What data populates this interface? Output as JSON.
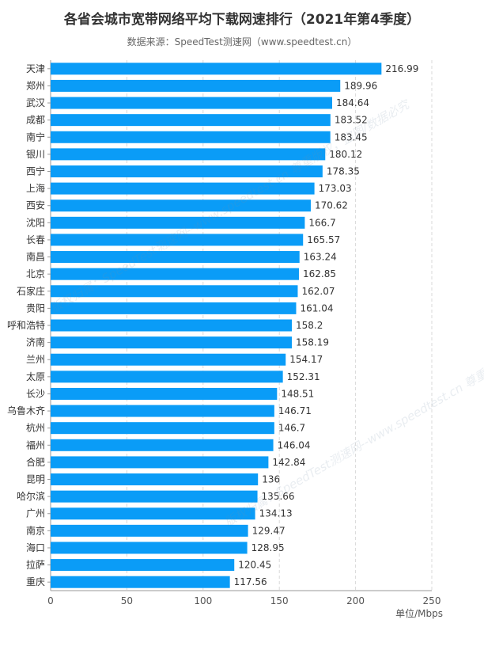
{
  "title": "各省会城市宽带网络平均下载网速排行（2021年第4季度）",
  "subtitle": "数据来源：SpeedTest测速网（www.speedtest.cn）",
  "watermark": "版权归属：SpeedTest测速网--www.speedtest.cn 尊重版权，盗图/数据必究",
  "colors": {
    "bar": "#0a9cf7",
    "grid": "#d9d9d9",
    "axis": "#999999"
  },
  "chart_data": {
    "type": "bar",
    "orientation": "horizontal",
    "categories": [
      "天津",
      "郑州",
      "武汉",
      "成都",
      "南宁",
      "银川",
      "西宁",
      "上海",
      "西安",
      "沈阳",
      "长春",
      "南昌",
      "北京",
      "石家庄",
      "贵阳",
      "呼和浩特",
      "济南",
      "兰州",
      "太原",
      "长沙",
      "乌鲁木齐",
      "杭州",
      "福州",
      "合肥",
      "昆明",
      "哈尔滨",
      "广州",
      "南京",
      "海口",
      "拉萨",
      "重庆"
    ],
    "values": [
      216.99,
      189.96,
      184.64,
      183.52,
      183.45,
      180.12,
      178.35,
      173.03,
      170.62,
      166.7,
      165.57,
      163.24,
      162.85,
      162.07,
      161.04,
      158.2,
      158.19,
      154.17,
      152.31,
      148.51,
      146.71,
      146.7,
      146.04,
      142.84,
      136,
      135.66,
      134.13,
      129.47,
      128.95,
      120.45,
      117.56
    ],
    "value_labels": [
      "216.99",
      "189.96",
      "184.64",
      "183.52",
      "183.45",
      "180.12",
      "178.35",
      "173.03",
      "170.62",
      "166.7",
      "165.57",
      "163.24",
      "162.85",
      "162.07",
      "161.04",
      "158.2",
      "158.19",
      "154.17",
      "152.31",
      "148.51",
      "146.71",
      "146.7",
      "146.04",
      "142.84",
      "136",
      "135.66",
      "134.13",
      "129.47",
      "128.95",
      "120.45",
      "117.56"
    ],
    "xlim": [
      0,
      250
    ],
    "xticks": [
      "0",
      "50",
      "100",
      "150",
      "200",
      "250"
    ],
    "xunit": "单位/Mbps",
    "grid": true,
    "legend": "none"
  }
}
